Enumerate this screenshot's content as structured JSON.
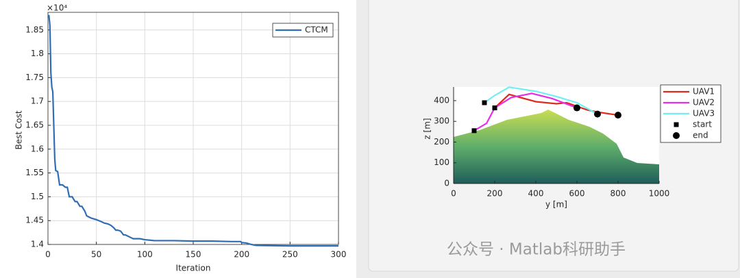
{
  "chart_data": [
    {
      "type": "line",
      "xlabel": "Iteration",
      "ylabel": "Best Cost",
      "y_multiplier": "×10⁴",
      "xlim": [
        0,
        300
      ],
      "xticks": [
        0,
        50,
        100,
        150,
        200,
        250,
        300
      ],
      "ylim": [
        1.4,
        1.887
      ],
      "yticks": [
        1.4,
        1.45,
        1.5,
        1.55,
        1.6,
        1.65,
        1.7,
        1.75,
        1.8,
        1.85
      ],
      "grid": true,
      "legend": "upper-right",
      "series": [
        {
          "name": "CTCM",
          "color": "#2e6db4",
          "x": [
            0,
            1,
            2,
            3,
            4,
            5,
            6,
            7,
            8,
            10,
            12,
            15,
            18,
            20,
            22,
            24,
            25,
            28,
            30,
            33,
            35,
            38,
            40,
            45,
            50,
            55,
            58,
            62,
            65,
            68,
            70,
            72,
            75,
            78,
            80,
            85,
            88,
            90,
            95,
            100,
            105,
            110,
            130,
            150,
            170,
            190,
            199,
            200,
            205,
            210,
            215,
            250,
            300
          ],
          "values": [
            1.88,
            1.88,
            1.86,
            1.76,
            1.73,
            1.72,
            1.65,
            1.58,
            1.555,
            1.553,
            1.525,
            1.525,
            1.52,
            1.52,
            1.5,
            1.5,
            1.5,
            1.49,
            1.49,
            1.48,
            1.48,
            1.47,
            1.46,
            1.455,
            1.452,
            1.448,
            1.445,
            1.443,
            1.44,
            1.435,
            1.43,
            1.43,
            1.428,
            1.42,
            1.42,
            1.415,
            1.412,
            1.412,
            1.412,
            1.41,
            1.409,
            1.408,
            1.408,
            1.407,
            1.407,
            1.406,
            1.406,
            1.404,
            1.403,
            1.4,
            1.398,
            1.397,
            1.397
          ]
        }
      ]
    },
    {
      "type": "line",
      "xlabel": "y [m]",
      "ylabel": "z [m]",
      "xlim": [
        0,
        1000
      ],
      "xticks": [
        0,
        200,
        400,
        600,
        800,
        1000
      ],
      "ylim": [
        0,
        466
      ],
      "yticks": [
        0,
        100,
        200,
        300,
        400
      ],
      "grid": false,
      "legend": "outside-upper-right",
      "series": [
        {
          "name": "UAV1",
          "color": "#e0281e",
          "x": [
            200,
            270,
            400,
            500,
            550,
            650,
            700,
            800
          ],
          "values": [
            365,
            430,
            395,
            385,
            390,
            355,
            345,
            330
          ]
        },
        {
          "name": "UAV2",
          "color": "#e62ee6",
          "x": [
            100,
            160,
            200,
            280,
            380,
            480,
            600
          ],
          "values": [
            255,
            290,
            365,
            415,
            435,
            410,
            365
          ]
        },
        {
          "name": "UAV3",
          "color": "#6ff0f0",
          "x": [
            150,
            200,
            270,
            400,
            500,
            600,
            700
          ],
          "values": [
            390,
            425,
            465,
            445,
            420,
            390,
            335
          ]
        },
        {
          "name": "start",
          "color": "#000000",
          "marker": "square",
          "line": false,
          "x": [
            200,
            100,
            150
          ],
          "values": [
            365,
            255,
            390
          ]
        },
        {
          "name": "end",
          "color": "#000000",
          "marker": "circle",
          "line": false,
          "x": [
            800,
            600,
            700
          ],
          "values": [
            330,
            365,
            335
          ]
        }
      ]
    }
  ],
  "watermark": "公众号 · Matlab科研助手"
}
